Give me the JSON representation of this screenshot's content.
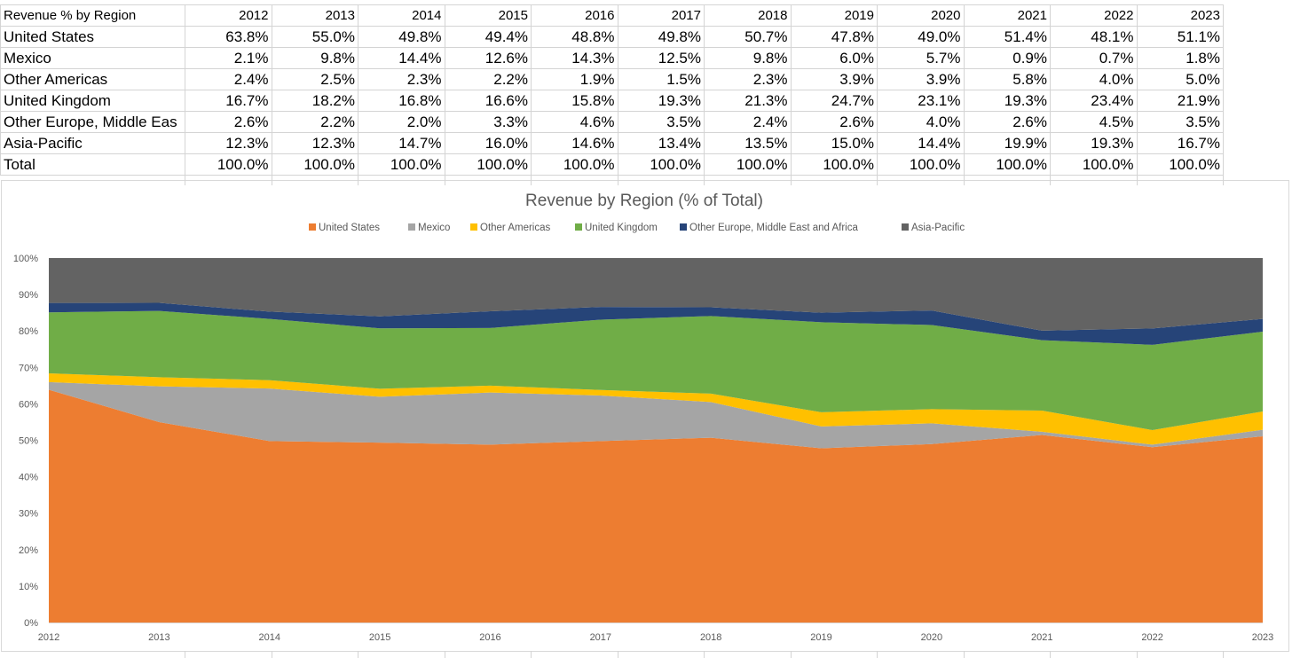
{
  "table": {
    "header_label": "Revenue % by Region",
    "years": [
      "2012",
      "2013",
      "2014",
      "2015",
      "2016",
      "2017",
      "2018",
      "2019",
      "2020",
      "2021",
      "2022",
      "2023"
    ],
    "rows": [
      {
        "label": "United States",
        "values": [
          "63.8%",
          "55.0%",
          "49.8%",
          "49.4%",
          "48.8%",
          "49.8%",
          "50.7%",
          "47.8%",
          "49.0%",
          "51.4%",
          "48.1%",
          "51.1%"
        ]
      },
      {
        "label": "Mexico",
        "values": [
          "2.1%",
          "9.8%",
          "14.4%",
          "12.6%",
          "14.3%",
          "12.5%",
          "9.8%",
          "6.0%",
          "5.7%",
          "0.9%",
          "0.7%",
          "1.8%"
        ]
      },
      {
        "label": "Other Americas",
        "values": [
          "2.4%",
          "2.5%",
          "2.3%",
          "2.2%",
          "1.9%",
          "1.5%",
          "2.3%",
          "3.9%",
          "3.9%",
          "5.8%",
          "4.0%",
          "5.0%"
        ]
      },
      {
        "label": "United Kingdom",
        "values": [
          "16.7%",
          "18.2%",
          "16.8%",
          "16.6%",
          "15.8%",
          "19.3%",
          "21.3%",
          "24.7%",
          "23.1%",
          "19.3%",
          "23.4%",
          "21.9%"
        ]
      },
      {
        "label": "Other Europe, Middle Eas",
        "values": [
          "2.6%",
          "2.2%",
          "2.0%",
          "3.3%",
          "4.6%",
          "3.5%",
          "2.4%",
          "2.6%",
          "4.0%",
          "2.6%",
          "4.5%",
          "3.5%"
        ]
      },
      {
        "label": "Asia-Pacific",
        "values": [
          "12.3%",
          "12.3%",
          "14.7%",
          "16.0%",
          "14.6%",
          "13.4%",
          "13.5%",
          "15.0%",
          "14.4%",
          "19.9%",
          "19.3%",
          "16.7%"
        ]
      },
      {
        "label": "Total",
        "values": [
          "100.0%",
          "100.0%",
          "100.0%",
          "100.0%",
          "100.0%",
          "100.0%",
          "100.0%",
          "100.0%",
          "100.0%",
          "100.0%",
          "100.0%",
          "100.0%"
        ]
      }
    ]
  },
  "chart_data": {
    "type": "area",
    "stacking": "percent",
    "title": "Revenue by Region (% of Total)",
    "xlabel": "",
    "ylabel": "",
    "x": [
      "2012",
      "2013",
      "2014",
      "2015",
      "2016",
      "2017",
      "2018",
      "2019",
      "2020",
      "2021",
      "2022",
      "2023"
    ],
    "ylim": [
      0,
      100
    ],
    "yticks": [
      "0%",
      "10%",
      "20%",
      "30%",
      "40%",
      "50%",
      "60%",
      "70%",
      "80%",
      "90%",
      "100%"
    ],
    "grid": false,
    "legend_position": "top",
    "series": [
      {
        "name": "United States",
        "color": "#ED7D31",
        "values": [
          63.8,
          55.0,
          49.8,
          49.4,
          48.8,
          49.8,
          50.7,
          47.8,
          49.0,
          51.4,
          48.1,
          51.1
        ]
      },
      {
        "name": "Mexico",
        "color": "#A5A5A5",
        "values": [
          2.1,
          9.8,
          14.4,
          12.6,
          14.3,
          12.5,
          9.8,
          6.0,
          5.7,
          0.9,
          0.7,
          1.8
        ]
      },
      {
        "name": "Other Americas",
        "color": "#FFC000",
        "values": [
          2.4,
          2.5,
          2.3,
          2.2,
          1.9,
          1.5,
          2.3,
          3.9,
          3.9,
          5.8,
          4.0,
          5.0
        ]
      },
      {
        "name": "United Kingdom",
        "color": "#70AD47",
        "values": [
          16.7,
          18.2,
          16.8,
          16.6,
          15.8,
          19.3,
          21.3,
          24.7,
          23.1,
          19.3,
          23.4,
          21.9
        ]
      },
      {
        "name": "Other Europe, Middle East and Africa",
        "color": "#264478",
        "values": [
          2.6,
          2.2,
          2.0,
          3.3,
          4.6,
          3.5,
          2.4,
          2.6,
          4.0,
          2.6,
          4.5,
          3.5
        ]
      },
      {
        "name": "Asia-Pacific",
        "color": "#636363",
        "values": [
          12.3,
          12.3,
          14.7,
          16.0,
          14.6,
          13.4,
          13.5,
          15.0,
          14.4,
          19.9,
          19.3,
          16.7
        ]
      }
    ]
  }
}
